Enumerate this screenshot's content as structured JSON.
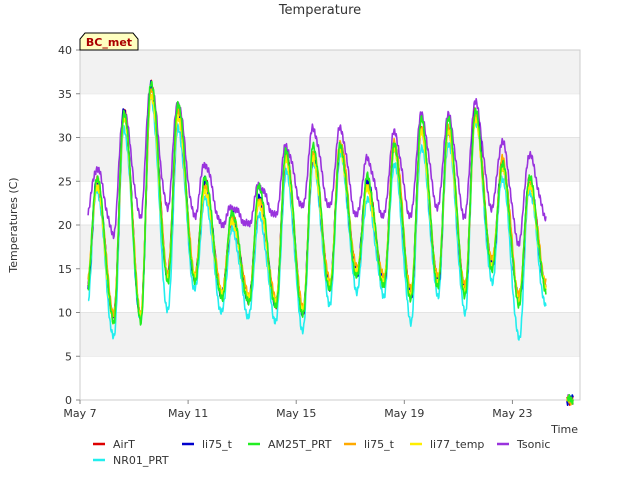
{
  "chart_data": {
    "type": "line",
    "title": "Temperature",
    "xlabel": "Time",
    "ylabel": "Temperatures (C)",
    "site_label": "BC_met",
    "ylim": [
      0,
      40
    ],
    "yticks": [
      0,
      5,
      10,
      15,
      20,
      25,
      30,
      35,
      40
    ],
    "xlim_days": [
      7,
      25.5
    ],
    "xticks": [
      {
        "day": 7,
        "label": "May 7"
      },
      {
        "day": 11,
        "label": "May 11"
      },
      {
        "day": 15,
        "label": "May 15"
      },
      {
        "day": 19,
        "label": "May 19"
      },
      {
        "day": 23,
        "label": "May 23"
      }
    ],
    "grid": "horizontal bands",
    "legend_position": "bottom",
    "daily": {
      "days": [
        7,
        8,
        9,
        10,
        11,
        12,
        13,
        14,
        15,
        16,
        17,
        18,
        19,
        20,
        21,
        22,
        23,
        24,
        25
      ],
      "AirT": {
        "min": [
          12.5,
          9.5,
          9.5,
          14.5,
          14.0,
          12.0,
          11.5,
          11.0,
          10.0,
          13.0,
          14.5,
          13.5,
          12.0,
          13.5,
          12.5,
          15.5,
          11.5,
          13.0,
          null
        ],
        "max": [
          25.0,
          33.0,
          36.0,
          33.0,
          25.0,
          21.0,
          23.0,
          28.0,
          28.0,
          29.0,
          25.0,
          29.0,
          31.0,
          31.0,
          33.0,
          27.0,
          25.0,
          null,
          null
        ]
      },
      "NR01_PRT": {
        "min": [
          10.5,
          7.0,
          9.0,
          10.0,
          12.5,
          10.0,
          9.5,
          9.0,
          8.0,
          11.0,
          12.5,
          12.0,
          9.0,
          12.0,
          10.0,
          13.5,
          7.0,
          10.5,
          null
        ],
        "max": [
          24.0,
          31.0,
          34.5,
          31.0,
          23.0,
          19.5,
          21.0,
          26.0,
          27.0,
          28.0,
          23.0,
          27.0,
          29.0,
          29.5,
          32.0,
          25.5,
          24.0,
          null,
          null
        ]
      },
      "li75_t_blue": {
        "min": [
          12.5,
          9.5,
          9.5,
          14.0,
          14.0,
          12.0,
          11.5,
          11.0,
          10.0,
          13.0,
          14.5,
          13.5,
          12.0,
          13.5,
          12.5,
          15.5,
          11.5,
          13.0,
          null
        ],
        "max": [
          25.0,
          33.0,
          36.0,
          33.0,
          25.0,
          21.0,
          23.0,
          28.0,
          28.0,
          29.0,
          25.0,
          29.0,
          31.0,
          31.0,
          33.0,
          27.0,
          25.0,
          null,
          null
        ]
      },
      "AM25T_PRT": {
        "min": [
          12.0,
          9.0,
          9.0,
          13.5,
          13.5,
          11.5,
          11.0,
          10.5,
          9.5,
          12.5,
          14.0,
          13.0,
          11.5,
          13.0,
          12.0,
          15.0,
          11.0,
          12.5,
          null
        ],
        "max": [
          25.5,
          33.0,
          36.5,
          34.0,
          25.5,
          21.5,
          24.5,
          28.5,
          29.0,
          29.0,
          25.5,
          29.0,
          32.0,
          32.0,
          33.0,
          27.0,
          25.5,
          null,
          null
        ]
      },
      "li75_t_orange": {
        "min": [
          13.0,
          10.0,
          10.0,
          14.5,
          14.5,
          12.5,
          12.0,
          11.5,
          10.5,
          13.5,
          15.0,
          14.0,
          12.5,
          14.0,
          13.0,
          16.0,
          12.0,
          13.5,
          null
        ],
        "max": [
          25.0,
          32.5,
          35.5,
          33.0,
          24.5,
          21.0,
          23.0,
          28.0,
          28.5,
          29.5,
          24.5,
          29.5,
          31.0,
          31.0,
          32.5,
          27.5,
          25.0,
          null,
          null
        ]
      },
      "li77_temp": {
        "min": [
          12.5,
          9.0,
          9.5,
          14.0,
          14.0,
          12.0,
          11.5,
          11.0,
          10.0,
          13.0,
          14.5,
          13.5,
          12.0,
          13.5,
          12.5,
          15.5,
          11.5,
          13.0,
          null
        ],
        "max": [
          24.5,
          32.5,
          35.0,
          32.5,
          24.0,
          20.5,
          22.5,
          27.5,
          27.5,
          28.5,
          24.0,
          28.5,
          30.5,
          30.5,
          32.0,
          26.5,
          24.5,
          null,
          null
        ]
      },
      "Tsonic": {
        "min": [
          21.0,
          19.0,
          21.0,
          22.0,
          21.0,
          20.0,
          20.0,
          21.0,
          22.0,
          22.0,
          21.0,
          21.0,
          21.0,
          22.0,
          21.0,
          22.0,
          18.0,
          21.0,
          null
        ],
        "max": [
          26.5,
          33.0,
          36.0,
          34.0,
          27.0,
          22.0,
          24.5,
          29.0,
          31.0,
          31.0,
          27.5,
          30.5,
          32.5,
          32.5,
          34.0,
          29.5,
          28.0,
          null,
          null
        ]
      }
    },
    "series": [
      {
        "key": "AirT",
        "name": "AirT",
        "color": "#dd0000"
      },
      {
        "key": "NR01_PRT",
        "name": "NR01_PRT",
        "color": "#22eeee"
      },
      {
        "key": "li75_t_blue",
        "name": "li75_t",
        "color": "#0000cc"
      },
      {
        "key": "AM25T_PRT",
        "name": "AM25T_PRT",
        "color": "#22ee22"
      },
      {
        "key": "li75_t_orange",
        "name": "li75_t",
        "color": "#ffaa00"
      },
      {
        "key": "li77_temp",
        "name": "li77_temp",
        "color": "#ffee00"
      },
      {
        "key": "Tsonic",
        "name": "Tsonic",
        "color": "#9933dd"
      }
    ]
  }
}
